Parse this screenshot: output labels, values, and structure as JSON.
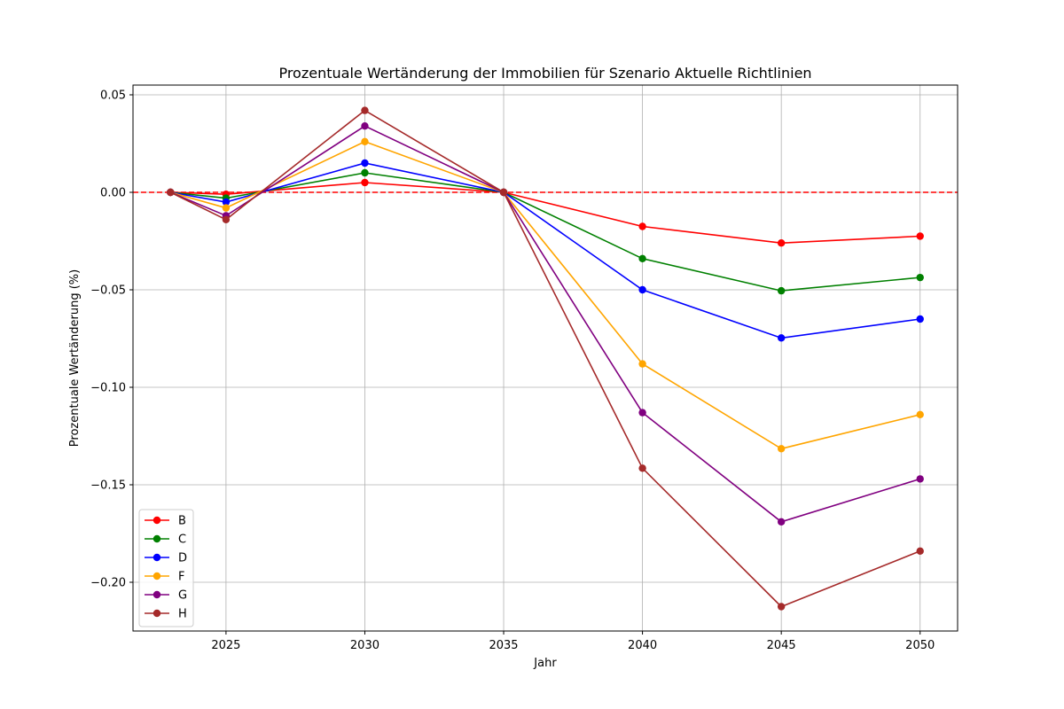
{
  "chart_data": {
    "type": "line",
    "title": "Prozentuale Wertänderung der Immobilien für Szenario Aktuelle Richtlinien",
    "xlabel": "Jahr",
    "ylabel": "Prozentuale Wertänderung (%)",
    "x": [
      2023,
      2025,
      2030,
      2035,
      2040,
      2045,
      2050
    ],
    "xlim": [
      2021.65,
      2051.35
    ],
    "ylim": [
      -0.225,
      0.055
    ],
    "x_ticks": [
      "2025",
      "2030",
      "2035",
      "2040",
      "2045",
      "2050"
    ],
    "y_ticks": [
      "0.05",
      "0.00",
      "−0.05",
      "−0.10",
      "−0.15",
      "−0.20"
    ],
    "grid": true,
    "legend_position": "lower-left",
    "reference_line": {
      "y": 0.0,
      "color": "#ff0000",
      "style": "dashed"
    },
    "series": [
      {
        "name": "B",
        "color": "#ff0000",
        "values": [
          0.0,
          -0.001,
          0.005,
          0.0,
          -0.0175,
          -0.026,
          -0.0225
        ]
      },
      {
        "name": "C",
        "color": "#008000",
        "values": [
          0.0,
          -0.003,
          0.01,
          0.0,
          -0.034,
          -0.0505,
          -0.0437
        ]
      },
      {
        "name": "D",
        "color": "#0000ff",
        "values": [
          0.0,
          -0.005,
          0.015,
          0.0,
          -0.05,
          -0.0747,
          -0.065
        ]
      },
      {
        "name": "F",
        "color": "#ffa500",
        "values": [
          0.0,
          -0.008,
          0.026,
          0.0,
          -0.088,
          -0.1315,
          -0.114
        ]
      },
      {
        "name": "G",
        "color": "#800080",
        "values": [
          0.0,
          -0.012,
          0.034,
          0.0,
          -0.113,
          -0.169,
          -0.147
        ]
      },
      {
        "name": "H",
        "color": "#a52a2a",
        "values": [
          0.0,
          -0.014,
          0.042,
          0.0,
          -0.1415,
          -0.2125,
          -0.184
        ]
      }
    ]
  }
}
